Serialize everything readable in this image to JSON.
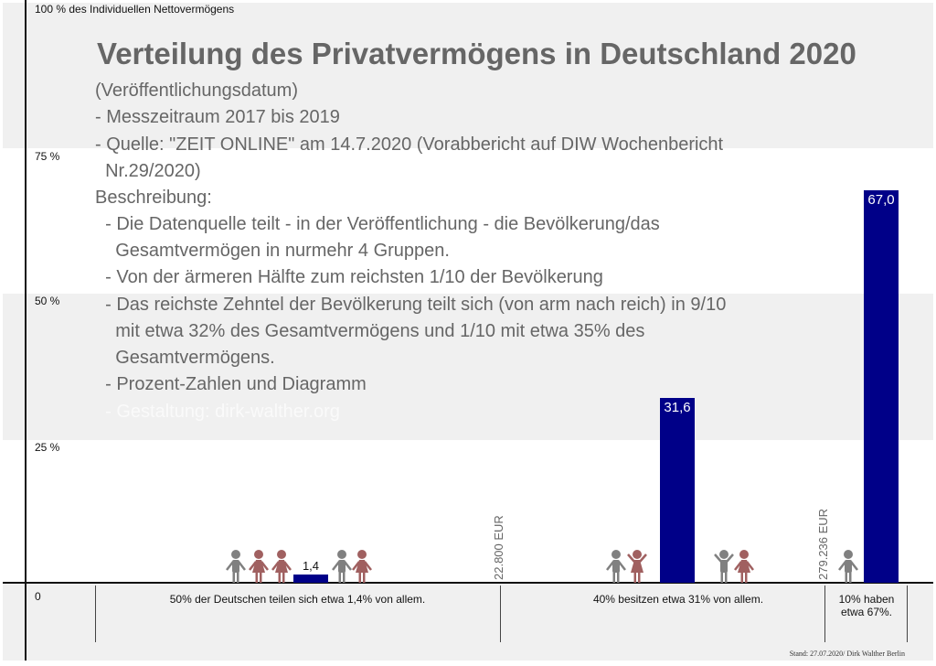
{
  "chart_data": {
    "type": "bar",
    "title": "Verteilung des Privatvermögens in Deutschland 2020",
    "ylabel": "100 % des Individuellen Nettovermögens",
    "ylim": [
      0,
      100
    ],
    "yticks": [
      "0",
      "25 %",
      "50 %",
      "75 %"
    ],
    "categories": [
      "50% der Deutschen teilen sich etwa 1,4% von allem.",
      "40% besitzen etwa 31% von allem.",
      "10% haben etwa 67%."
    ],
    "values": [
      1.4,
      31.6,
      67.0
    ],
    "value_labels": [
      "1,4",
      "31,6",
      "67,0"
    ],
    "thresholds": [
      "22.800 EUR",
      "279.236 EUR"
    ],
    "grid": false
  },
  "description": {
    "lines": [
      "(Veröffentlichungsdatum)",
      "- Messzeitraum 2017 bis 2019",
      "- Quelle: \"ZEIT ONLINE\" am 14.7.2020 (Vorabbericht auf DIW Wochenbericht",
      "  Nr.29/2020)",
      "Beschreibung:",
      "  - Die Datenquelle teilt - in der Veröffentlichung - die Bevölkerung/das",
      "    Gesamtvermögen in nurmehr 4 Gruppen.",
      "  - Von der ärmeren Hälfte zum reichsten 1/10 der Bevölkerung",
      "  - Das reichste Zehntel der Bevölkerung teilt sich (von arm nach reich) in 9/10",
      "    mit etwa 32% des Gesamtvermögens und 1/10 mit etwa 35% des",
      "    Gesamtvermögens.",
      "  - Prozent-Zahlen und Diagramm",
      "  - Gestaltung: dirk-walther.org"
    ]
  },
  "footer": "Stand: 27.07.2020/ Dirk Walther Berlin",
  "colors": {
    "bar": "#000088",
    "band": "#f0f0f0",
    "male": "#808080",
    "female": "#a06060"
  }
}
